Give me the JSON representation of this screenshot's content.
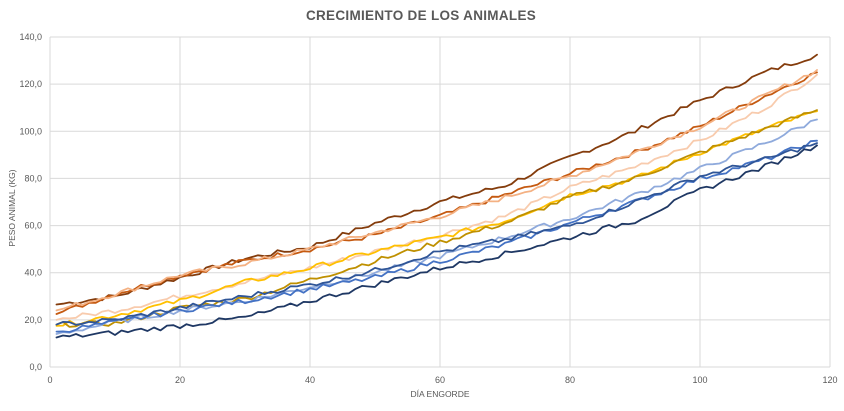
{
  "chart_data": {
    "type": "line",
    "title": "CRECIMIENTO DE LOS ANIMALES",
    "xlabel": "DÍA ENGORDE",
    "ylabel": "PESO ANIMAL (KG)",
    "xlim": [
      0,
      120
    ],
    "ylim": [
      0,
      140
    ],
    "x_ticks": [
      "0",
      "20",
      "40",
      "60",
      "80",
      "100",
      "120"
    ],
    "y_ticks": [
      "0,0",
      "20,0",
      "40,0",
      "60,0",
      "80,0",
      "100,0",
      "120,0",
      "140,0"
    ],
    "grid": true,
    "legend": "none",
    "x": [
      1,
      10,
      20,
      30,
      40,
      50,
      60,
      70,
      80,
      90,
      100,
      110,
      118
    ],
    "series": [
      {
        "color": "#843c0c",
        "values": [
          26.5,
          30,
          38,
          46,
          51,
          61,
          70,
          77,
          89,
          100,
          113,
          125,
          132.5
        ]
      },
      {
        "color": "#c55a11",
        "values": [
          22.5,
          31,
          39,
          45,
          50,
          56,
          64,
          73,
          82,
          91,
          102,
          115,
          125
        ]
      },
      {
        "color": "#f4b183",
        "values": [
          24,
          31,
          39,
          44,
          50,
          57,
          64,
          72,
          81,
          91,
          102,
          115,
          126
        ]
      },
      {
        "color": "#f8cbad",
        "values": [
          20,
          24,
          30,
          36,
          42,
          49,
          56,
          64,
          76,
          85,
          96,
          110,
          124
        ]
      },
      {
        "color": "#ffc000",
        "values": [
          17.5,
          22,
          28,
          36,
          42,
          49,
          55,
          62,
          73,
          80,
          91,
          101,
          108.5
        ]
      },
      {
        "color": "#bf9000",
        "values": [
          18,
          18.5,
          25,
          29,
          37,
          45,
          53,
          61,
          72,
          80,
          91,
          101,
          109
        ]
      },
      {
        "color": "#8faadc",
        "values": [
          14,
          19,
          24,
          28,
          34,
          40,
          47,
          55,
          63,
          73,
          84,
          95,
          105
        ]
      },
      {
        "color": "#4472c4",
        "values": [
          15,
          19,
          24,
          28,
          33,
          38,
          45,
          52,
          61,
          70,
          80,
          88,
          96
        ]
      },
      {
        "color": "#2f5597",
        "values": [
          18,
          20,
          25,
          30,
          35,
          41,
          49,
          54,
          60,
          70,
          81,
          88,
          95
        ]
      },
      {
        "color": "#1f3864",
        "values": [
          12.5,
          14.5,
          17.5,
          21,
          28,
          35,
          42,
          48,
          55,
          62,
          75,
          85,
          94
        ]
      }
    ]
  }
}
